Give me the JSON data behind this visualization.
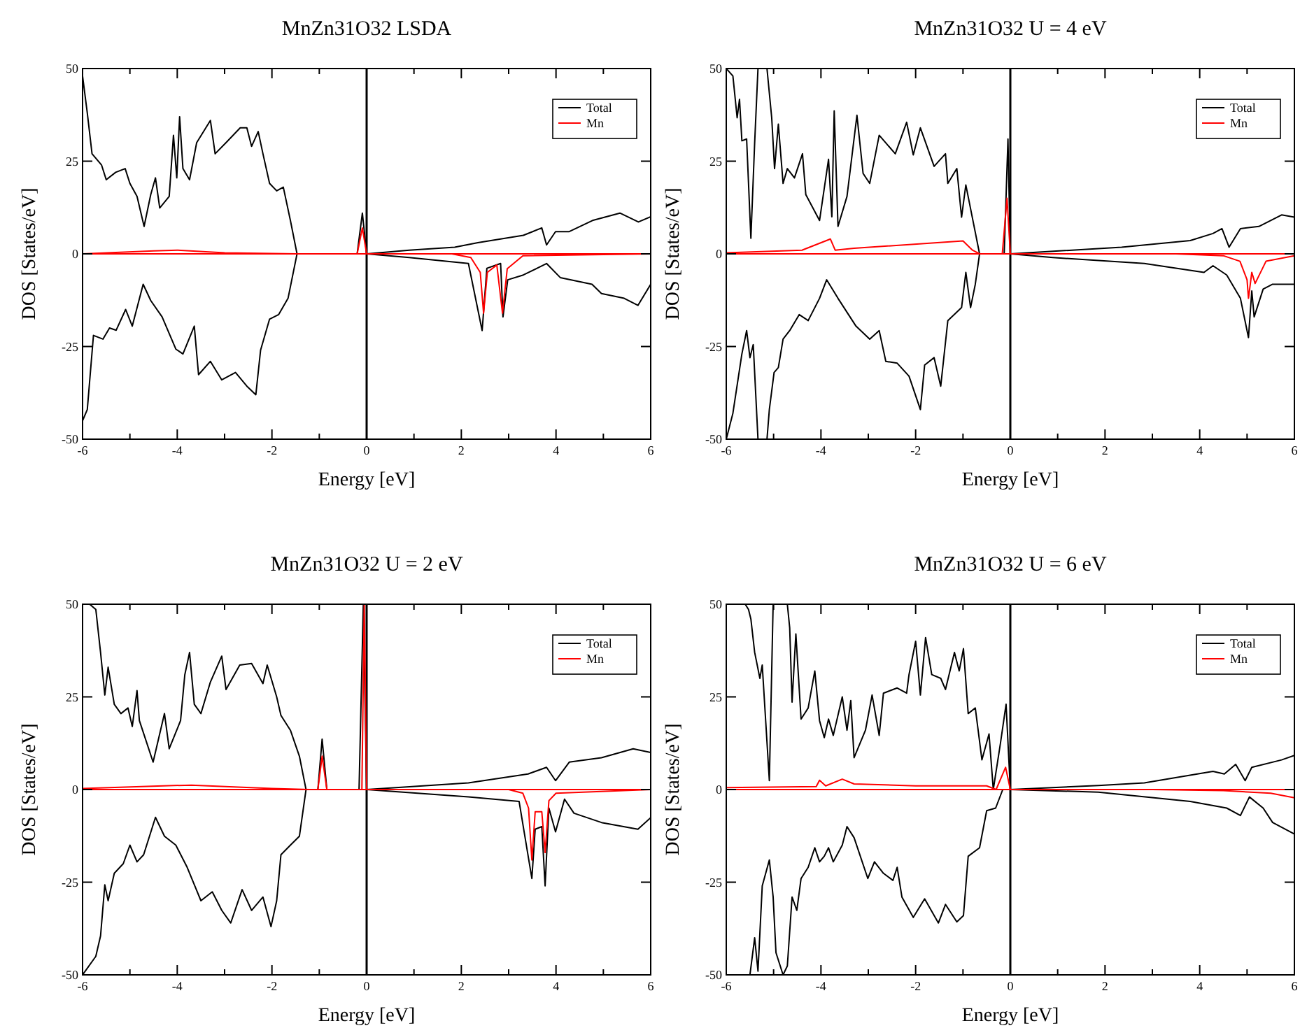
{
  "chart_data": [
    {
      "type": "line",
      "title": "MnZn31O32 LSDA",
      "xlabel": "Energy [eV]",
      "ylabel": "DOS [States/eV]",
      "xlim": [
        -6,
        6
      ],
      "ylim": [
        -50,
        50
      ],
      "xticks": [
        -6,
        {
          "value": -5,
          "label": null
        },
        -4,
        {
          "value": -3,
          "label": null
        },
        -2,
        {
          "value": -1,
          "label": null
        },
        0,
        {
          "value": 1,
          "label": null
        },
        2,
        {
          "value": 3,
          "label": null
        },
        4,
        {
          "value": 5,
          "label": null
        },
        6
      ],
      "yticks": [
        -50,
        -25,
        0,
        25,
        50
      ],
      "legend": "top right",
      "ref_lines": [
        {
          "axis": "x",
          "value": 0,
          "color": "#000000"
        }
      ],
      "series": [
        {
          "name": "Total",
          "color": "#000000",
          "x": [
            -6,
            -5.9,
            -5.8,
            -5.6,
            -5.5,
            -5.3,
            -5.1,
            -5.0,
            -4.85,
            -4.7,
            -4.56,
            -4.46,
            -4.37,
            -4.17,
            -4.08,
            -4.01,
            -3.95,
            -3.88,
            -3.74,
            -3.59,
            -3.3,
            -3.2,
            -2.97,
            -2.67,
            -2.53,
            -2.43,
            -2.29,
            -2.19,
            -2.05,
            -1.9,
            -1.76,
            -1.61,
            -1.47,
            -0.2,
            -0.09,
            0,
            0.9,
            1.86,
            2.35,
            3.31,
            3.7,
            3.8,
            3.99,
            4.28,
            4.77,
            5.35,
            5.74,
            6
          ],
          "values": [
            48,
            38,
            27,
            24,
            20,
            22,
            23,
            19,
            15.5,
            7.4,
            16,
            20.5,
            12.4,
            15.5,
            32,
            20.5,
            37,
            23,
            20,
            30,
            36,
            27,
            30,
            34,
            34,
            29,
            33,
            27,
            19,
            17,
            18,
            9,
            0,
            0,
            11,
            0,
            1,
            1.8,
            3,
            5,
            7,
            2.4,
            6,
            6,
            9,
            11,
            8.6,
            10
          ]
        },
        {
          "color": "#000000",
          "x": [
            -6,
            -5.9,
            -5.77,
            -5.57,
            -5.43,
            -5.29,
            -5.09,
            -4.95,
            -4.72,
            -4.56,
            -4.32,
            -4.03,
            -3.88,
            -3.64,
            -3.55,
            -3.3,
            -3.06,
            -2.77,
            -2.53,
            -2.34,
            -2.24,
            -2.05,
            -1.86,
            -1.66,
            -1.47,
            0,
            0.9,
            2.15,
            2.44,
            2.54,
            2.83,
            2.88,
            2.98,
            3.31,
            3.8,
            4.09,
            4.76,
            4.96,
            5.44,
            5.73,
            6
          ],
          "values": [
            -45,
            -42,
            -22,
            -23,
            -20,
            -20.6,
            -15,
            -19.5,
            -8.2,
            -12.6,
            -17,
            -25.7,
            -27,
            -19.5,
            -32.6,
            -29,
            -34,
            -32,
            -35.7,
            -38,
            -26,
            -17.6,
            -16.4,
            -12,
            0,
            0,
            -1,
            -2.6,
            -20.7,
            -3.9,
            -2.6,
            -17,
            -7,
            -5.7,
            -2.6,
            -6.4,
            -8.2,
            -10.7,
            -12,
            -13.9,
            -8.2
          ]
        },
        {
          "name": "Mn",
          "color": "#ff0000",
          "x": [
            -6,
            -4.5,
            -4,
            -3,
            -1.5,
            -0.2,
            -0.09,
            0,
            6
          ],
          "values": [
            0,
            0.8,
            1,
            0.3,
            0,
            0,
            7,
            0,
            0
          ]
        },
        {
          "color": "#ff0000",
          "x": [
            -6,
            1.8,
            2.2,
            2.4,
            2.47,
            2.55,
            2.75,
            2.87,
            2.97,
            3.3,
            6
          ],
          "values": [
            0,
            0,
            -1,
            -5,
            -16,
            -5,
            -3,
            -16,
            -4,
            -0.5,
            0
          ]
        }
      ]
    },
    {
      "type": "line",
      "title": "MnZn31O32 U = 4 eV",
      "xlabel": "Energy [eV]",
      "ylabel": "DOS [States/eV]",
      "xlim": [
        -6,
        6
      ],
      "ylim": [
        -50,
        50
      ],
      "xticks": [
        -6,
        {
          "value": -5,
          "label": null
        },
        -4,
        {
          "value": -3,
          "label": null
        },
        -2,
        {
          "value": -1,
          "label": null
        },
        0,
        {
          "value": 1,
          "label": null
        },
        2,
        {
          "value": 3,
          "label": null
        },
        4,
        {
          "value": 5,
          "label": null
        },
        6
      ],
      "yticks": [
        -50,
        -25,
        0,
        25,
        50
      ],
      "legend": "top right",
      "ref_lines": [
        {
          "axis": "x",
          "value": 0,
          "color": "#000000"
        }
      ],
      "series": [
        {
          "name": "Total",
          "color": "#000000",
          "x": [
            -6,
            -5.86,
            -5.77,
            -5.72,
            -5.67,
            -5.57,
            -5.48,
            -5.4,
            -5.33,
            -5.14,
            -5.04,
            -4.98,
            -4.9,
            -4.8,
            -4.71,
            -4.56,
            -4.39,
            -4.32,
            -4.03,
            -3.84,
            -3.77,
            -3.72,
            -3.64,
            -3.45,
            -3.24,
            -3.11,
            -2.97,
            -2.77,
            -2.43,
            -2.19,
            -2.05,
            -1.9,
            -1.61,
            -1.37,
            -1.32,
            -1.13,
            -1.03,
            -0.94,
            -0.65,
            -0.13,
            -0.05,
            0,
            2.35,
            3.8,
            4.28,
            4.47,
            4.62,
            4.86,
            5.25,
            5.73,
            6
          ],
          "values": [
            50,
            48,
            36.7,
            41.7,
            30.5,
            31,
            4.2,
            30,
            50,
            50,
            36.7,
            23,
            35,
            19,
            23,
            20.5,
            27,
            16,
            9,
            25.5,
            10,
            38.6,
            7.4,
            15.5,
            37.4,
            21.7,
            19,
            32,
            27,
            35.5,
            26.7,
            34,
            23.6,
            27,
            19,
            23,
            9.9,
            18.6,
            0,
            0,
            31,
            0,
            1.8,
            3.6,
            5.5,
            6.8,
            1.8,
            6.8,
            7.4,
            10.5,
            9.9
          ]
        },
        {
          "color": "#000000",
          "x": [
            -6,
            -5.86,
            -5.67,
            -5.57,
            -5.5,
            -5.43,
            -5.33,
            -5.14,
            -5.09,
            -4.99,
            -4.9,
            -4.8,
            -4.66,
            -4.46,
            -4.27,
            -4.03,
            -3.88,
            -3.64,
            -3.26,
            -2.97,
            -2.77,
            -2.63,
            -2.39,
            -2.14,
            -1.9,
            -1.81,
            -1.61,
            -1.47,
            -1.32,
            -1.03,
            -0.94,
            -0.84,
            -0.74,
            -0.65,
            0,
            0.9,
            2.83,
            4.09,
            4.28,
            4.57,
            4.86,
            5.03,
            5.1,
            5.15,
            5.34,
            5.54,
            6
          ],
          "values": [
            -50,
            -43,
            -27,
            -20.7,
            -28,
            -24.5,
            -50,
            -50,
            -42,
            -32,
            -30.7,
            -23,
            -20.7,
            -16.4,
            -18,
            -12,
            -7,
            -12,
            -19.5,
            -23,
            -20.7,
            -29,
            -29.5,
            -33,
            -42,
            -30,
            -28,
            -35.7,
            -18,
            -14.5,
            -5,
            -14.5,
            -8.2,
            0,
            0,
            -1,
            -2.6,
            -5,
            -3.2,
            -5.7,
            -12,
            -22.6,
            -10,
            -17,
            -9.5,
            -8.2,
            -8.2
          ]
        },
        {
          "name": "Mn",
          "color": "#ff0000",
          "x": [
            -6,
            -4.4,
            -3.8,
            -3.7,
            -3.3,
            -1.0,
            -0.8,
            -0.65,
            -0.17,
            -0.07,
            0,
            6
          ],
          "values": [
            0.3,
            1,
            4,
            1,
            1.5,
            3.5,
            1,
            0,
            0,
            15,
            0,
            0
          ]
        },
        {
          "color": "#ff0000",
          "x": [
            -6,
            3.5,
            4.5,
            4.85,
            5.0,
            5.03,
            5.1,
            5.17,
            5.4,
            6
          ],
          "values": [
            0,
            0,
            -0.5,
            -2,
            -7,
            -12,
            -5,
            -8,
            -2,
            -0.5
          ]
        }
      ]
    },
    {
      "type": "line",
      "title": "MnZn31O32 U = 2 eV",
      "xlabel": "Energy [eV]",
      "ylabel": "DOS [States/eV]",
      "xlim": [
        -6,
        6
      ],
      "ylim": [
        -50,
        50
      ],
      "xticks": [
        -6,
        {
          "value": -5,
          "label": null
        },
        -4,
        {
          "value": -3,
          "label": null
        },
        -2,
        {
          "value": -1,
          "label": null
        },
        0,
        {
          "value": 1,
          "label": null
        },
        2,
        {
          "value": 3,
          "label": null
        },
        4,
        {
          "value": 5,
          "label": null
        },
        6
      ],
      "yticks": [
        -50,
        -25,
        0,
        25,
        50
      ],
      "legend": "top right",
      "ref_lines": [
        {
          "axis": "x",
          "value": 0,
          "color": "#000000"
        }
      ],
      "series": [
        {
          "name": "Total",
          "color": "#000000",
          "x": [
            -5.85,
            -5.72,
            -5.62,
            -5.53,
            -5.46,
            -5.33,
            -5.19,
            -5.04,
            -4.95,
            -4.85,
            -4.8,
            -4.51,
            -4.27,
            -4.17,
            -3.93,
            -3.84,
            -3.74,
            -3.64,
            -3.5,
            -3.3,
            -3.06,
            -2.97,
            -2.68,
            -2.43,
            -2.19,
            -2.1,
            -1.9,
            -1.81,
            -1.61,
            -1.42,
            -1.28,
            -1.03,
            -0.94,
            -0.84,
            -0.16,
            -0.07,
            0,
            2.15,
            3.41,
            3.8,
            3.99,
            4.28,
            4.96,
            5.63,
            6
          ],
          "values": [
            50,
            48.6,
            37,
            25.5,
            33,
            23,
            20.5,
            22,
            17,
            26.7,
            18.6,
            7.4,
            20.5,
            11,
            18.6,
            31,
            37,
            23,
            20.5,
            29,
            36,
            27,
            33.6,
            34,
            28.6,
            33.6,
            25,
            20,
            16,
            9,
            0,
            0,
            13.6,
            0,
            0,
            50,
            0,
            1.8,
            4.2,
            6,
            2.4,
            7.4,
            8.6,
            11,
            10
          ]
        },
        {
          "color": "#000000",
          "x": [
            -6,
            -5.72,
            -5.62,
            -5.53,
            -5.46,
            -5.33,
            -5.14,
            -5.0,
            -4.85,
            -4.71,
            -4.46,
            -4.27,
            -4.03,
            -3.79,
            -3.5,
            -3.26,
            -3.06,
            -2.87,
            -2.63,
            -2.43,
            -2.19,
            -2.02,
            -1.9,
            -1.81,
            -1.61,
            -1.42,
            -1.28,
            0,
            2.15,
            3.22,
            3.49,
            3.56,
            3.7,
            3.77,
            3.85,
            3.99,
            4.18,
            4.38,
            4.96,
            5.73,
            6
          ],
          "values": [
            -50,
            -45,
            -39.5,
            -25.7,
            -30,
            -22.6,
            -20,
            -15,
            -19.5,
            -17.6,
            -7.5,
            -12.6,
            -15,
            -21,
            -30,
            -27.6,
            -32.6,
            -36,
            -27,
            -32.6,
            -29,
            -37,
            -30,
            -17.6,
            -15,
            -12.6,
            0,
            0,
            -2,
            -3.2,
            -24,
            -10.7,
            -10,
            -26,
            -5,
            -11.4,
            -2.6,
            -6.4,
            -8.9,
            -10.7,
            -7.6
          ]
        },
        {
          "name": "Mn",
          "color": "#ff0000",
          "x": [
            -6,
            -4.3,
            -3.7,
            -2,
            -1.2,
            -1.03,
            -0.94,
            -0.84,
            -0.1,
            -0.05,
            0,
            6
          ],
          "values": [
            0.3,
            1,
            1.2,
            0.3,
            0,
            0,
            9,
            0,
            0,
            50,
            0,
            0
          ]
        },
        {
          "color": "#ff0000",
          "x": [
            -6,
            3,
            3.3,
            3.42,
            3.49,
            3.56,
            3.7,
            3.77,
            3.85,
            4.0,
            6
          ],
          "values": [
            0,
            0,
            -1,
            -5,
            -19,
            -6,
            -6,
            -17,
            -3,
            -1,
            0
          ]
        }
      ]
    },
    {
      "type": "line",
      "title": "MnZn31O32 U = 6 eV",
      "xlabel": "Energy [eV]",
      "ylabel": "DOS [States/eV]",
      "xlim": [
        -6,
        6
      ],
      "ylim": [
        -50,
        50
      ],
      "xticks": [
        -6,
        {
          "value": -5,
          "label": null
        },
        -4,
        {
          "value": -3,
          "label": null
        },
        -2,
        {
          "value": -1,
          "label": null
        },
        0,
        {
          "value": 1,
          "label": null
        },
        2,
        {
          "value": 3,
          "label": null
        },
        4,
        {
          "value": 5,
          "label": null
        },
        6
      ],
      "yticks": [
        -50,
        -25,
        0,
        25,
        50
      ],
      "legend": "top right",
      "ref_lines": [
        {
          "axis": "x",
          "value": 0,
          "color": "#000000"
        }
      ],
      "series": [
        {
          "name": "Total",
          "color": "#000000",
          "x": [
            -5.6,
            -5.53,
            -5.48,
            -5.4,
            -5.29,
            -5.24,
            -5.09,
            -5.01,
            -4.71,
            -4.66,
            -4.61,
            -4.53,
            -4.42,
            -4.27,
            -4.13,
            -4.03,
            -3.93,
            -3.84,
            -3.74,
            -3.55,
            -3.45,
            -3.37,
            -3.3,
            -3.06,
            -2.92,
            -2.77,
            -2.68,
            -2.39,
            -2.19,
            -2.14,
            -2,
            -1.9,
            -1.79,
            -1.66,
            -1.47,
            -1.37,
            -1.18,
            -1.08,
            -0.99,
            -0.89,
            -0.74,
            -0.6,
            -0.45,
            -0.36,
            -0.21,
            -0.09,
            0,
            1.86,
            2.83,
            4.28,
            4.52,
            4.76,
            4.96,
            5.1,
            5.73,
            6
          ],
          "values": [
            50,
            48.6,
            46,
            37,
            30,
            33.6,
            2.4,
            50,
            50,
            43.6,
            23.6,
            42,
            19,
            22,
            32,
            18.6,
            14,
            19,
            14.6,
            25,
            16,
            24,
            8.6,
            16,
            25.5,
            14.6,
            26,
            27.4,
            26,
            31,
            40,
            25.5,
            41,
            31,
            30,
            27,
            37,
            32,
            38,
            20.5,
            22,
            8,
            15,
            0,
            12.4,
            23,
            0,
            1.1,
            1.8,
            4.9,
            4.2,
            6.8,
            2.4,
            6,
            8,
            9.2
          ]
        },
        {
          "color": "#000000",
          "x": [
            -5.5,
            -5.4,
            -5.33,
            -5.24,
            -5.09,
            -5.01,
            -4.95,
            -4.8,
            -4.71,
            -4.61,
            -4.51,
            -4.42,
            -4.27,
            -4.13,
            -4.03,
            -3.93,
            -3.84,
            -3.74,
            -3.55,
            -3.45,
            -3.3,
            -3.01,
            -2.87,
            -2.68,
            -2.48,
            -2.39,
            -2.29,
            -2.05,
            -1.81,
            -1.52,
            -1.37,
            -1.13,
            -0.99,
            -0.89,
            -0.65,
            -0.5,
            -0.31,
            -0.16,
            0,
            1.86,
            3.8,
            4.57,
            4.86,
            5.05,
            5.34,
            5.54,
            6
          ],
          "values": [
            -50,
            -40,
            -49,
            -26,
            -19,
            -29,
            -44,
            -50,
            -47.6,
            -29,
            -32.6,
            -24,
            -21,
            -15.7,
            -19.5,
            -18,
            -15.7,
            -19.5,
            -15,
            -10,
            -13,
            -24,
            -19.5,
            -22.6,
            -24.5,
            -21,
            -29,
            -34.5,
            -29.5,
            -36,
            -31,
            -35.7,
            -34,
            -18,
            -15.7,
            -5.7,
            -5,
            0,
            0,
            -0.7,
            -3.2,
            -5,
            -7,
            -2,
            -5,
            -8.9,
            -12
          ]
        },
        {
          "name": "Mn",
          "color": "#ff0000",
          "x": [
            -6,
            -4.1,
            -4.03,
            -3.9,
            -3.55,
            -3.3,
            -2,
            -0.5,
            -0.3,
            -0.1,
            0,
            6
          ],
          "values": [
            0.5,
            0.8,
            2.5,
            1,
            2.8,
            1.5,
            1,
            1,
            0,
            6,
            0,
            0
          ]
        },
        {
          "color": "#ff0000",
          "x": [
            -6,
            3,
            4.5,
            5.5,
            6
          ],
          "values": [
            0,
            0,
            -0.3,
            -1,
            -2.2
          ]
        }
      ]
    }
  ]
}
